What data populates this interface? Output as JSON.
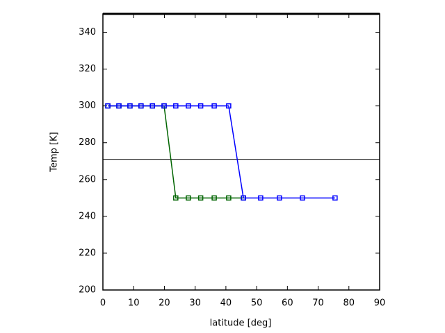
{
  "chart_data": {
    "type": "line",
    "x_label": "latitude [deg]",
    "y_label": "Temp [K]",
    "xlim": [
      0,
      90
    ],
    "xticks": [
      0,
      10,
      20,
      30,
      40,
      50,
      60,
      70,
      80,
      90
    ],
    "ylim": [
      200,
      350
    ],
    "yticks": [
      200,
      220,
      240,
      260,
      280,
      300,
      320,
      340
    ],
    "hline": 271,
    "hline_color": "#000000",
    "marker": "square",
    "series": [
      {
        "color": "#006400",
        "x": [
          1.6,
          5.2,
          8.8,
          12.4,
          16.1,
          19.9,
          23.7,
          27.8,
          31.8,
          36.2,
          40.9,
          45.7
        ],
        "values": [
          300,
          300,
          300,
          300,
          300,
          300,
          250,
          250,
          250,
          250,
          250,
          250
        ]
      },
      {
        "color": "#0000ff",
        "x": [
          1.6,
          5.2,
          8.8,
          12.4,
          16.1,
          19.9,
          23.7,
          27.8,
          31.8,
          36.2,
          40.9,
          45.7,
          51.3,
          57.4,
          64.9,
          75.5
        ],
        "values": [
          300,
          300,
          300,
          300,
          300,
          300,
          300,
          300,
          300,
          300,
          300,
          250,
          250,
          250,
          250,
          250
        ]
      }
    ]
  }
}
